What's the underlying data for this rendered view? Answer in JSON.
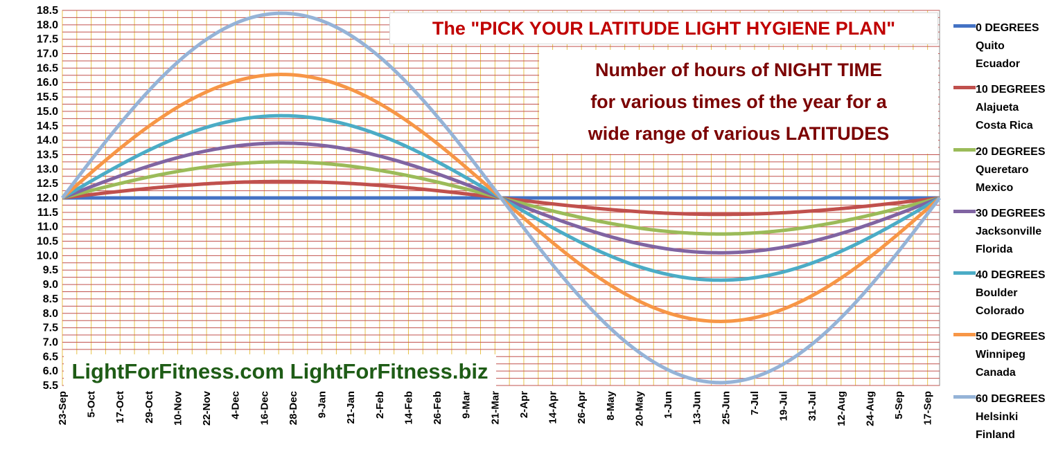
{
  "chart_data": {
    "type": "line",
    "title": "The \"PICK YOUR LATITUDE LIGHT HYGIENE PLAN\"",
    "subtitle_lines": [
      "Number of  hours of NIGHT TIME",
      "for various times of the year for a",
      "wide range of various LATITUDES"
    ],
    "watermark": "LightForFitness.com LightForFitness.biz",
    "ylim": [
      5.5,
      18.5
    ],
    "y_ticks": [
      "5.5",
      "6.0",
      "6.5",
      "7.0",
      "7.5",
      "8.0",
      "8.5",
      "9.0",
      "9.5",
      "10.0",
      "10.5",
      "11.0",
      "11.5",
      "12.0",
      "12.5",
      "13.0",
      "13.5",
      "14.0",
      "14.5",
      "15.0",
      "15.5",
      "16.0",
      "16.5",
      "17.0",
      "17.5",
      "18.0",
      "18.5"
    ],
    "x_tick_labels": [
      "23-Sep",
      "5-Oct",
      "17-Oct",
      "29-Oct",
      "10-Nov",
      "22-Nov",
      "4-Dec",
      "16-Dec",
      "28-Dec",
      "9-Jan",
      "21-Jan",
      "2-Feb",
      "14-Feb",
      "26-Feb",
      "9-Mar",
      "21-Mar",
      "2-Apr",
      "14-Apr",
      "26-Apr",
      "8-May",
      "20-May",
      "1-Jun",
      "13-Jun",
      "25-Jun",
      "7-Jul",
      "19-Jul",
      "31-Jul",
      "12-Aug",
      "24-Aug",
      "5-Sep",
      "17-Sep"
    ],
    "x_range_days": [
      0,
      365
    ],
    "grid": true,
    "legend_position": "right",
    "series": [
      {
        "name": "0 DEGREES",
        "line2": "Quito",
        "line3": "Ecuador",
        "color": "#4472c4",
        "min": 12.0,
        "max": 12.0
      },
      {
        "name": "10 DEGREES",
        "line2": "Alajueta",
        "line3": "Costa Rica",
        "color": "#c0504d",
        "min": 11.43,
        "max": 12.57
      },
      {
        "name": "20 DEGREES",
        "line2": "Queretaro",
        "line3": "Mexico",
        "color": "#9bbb59",
        "min": 10.75,
        "max": 13.25
      },
      {
        "name": "30 DEGREES",
        "line2": "Jacksonville",
        "line3": "Florida",
        "color": "#8064a2",
        "min": 10.1,
        "max": 13.9
      },
      {
        "name": "40 DEGREES",
        "line2": "Boulder",
        "line3": "Colorado",
        "color": "#4bacc6",
        "min": 9.15,
        "max": 14.85
      },
      {
        "name": "50 DEGREES",
        "line2": "Winnipeg",
        "line3": "Canada",
        "color": "#f79646",
        "min": 7.72,
        "max": 16.28
      },
      {
        "name": "60 DEGREES",
        "line2": "Helsinki",
        "line3": "Finland",
        "color": "#95b3d7",
        "min": 5.6,
        "max": 18.4
      }
    ]
  }
}
